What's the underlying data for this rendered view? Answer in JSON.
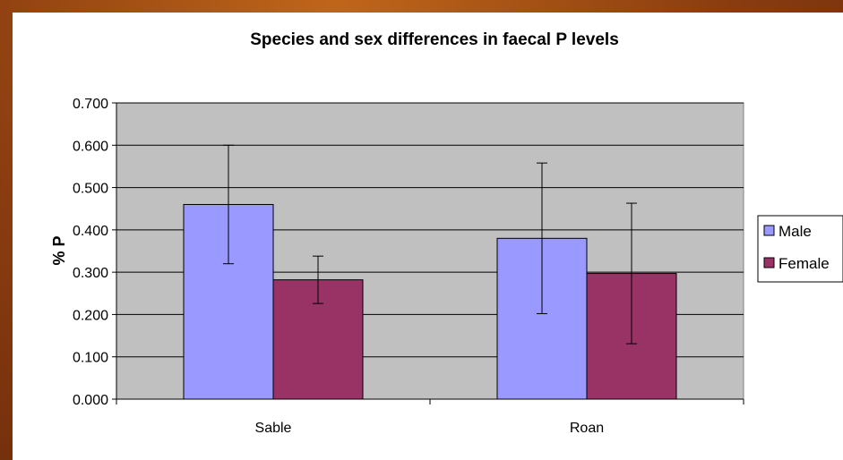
{
  "chart_data": {
    "type": "bar",
    "title": "Species and sex differences in faecal P levels",
    "xlabel": "",
    "ylabel": "% P",
    "categories": [
      "Sable",
      "Roan"
    ],
    "ylim": [
      0,
      0.7
    ],
    "yticks": [
      "0.000",
      "0.100",
      "0.200",
      "0.300",
      "0.400",
      "0.500",
      "0.600",
      "0.700"
    ],
    "grid": true,
    "legend_position": "right",
    "series": [
      {
        "name": "Male",
        "color": "#9999ff",
        "values": [
          0.46,
          0.38
        ],
        "error_low": [
          0.32,
          0.202
        ],
        "error_high": [
          0.6,
          0.558
        ]
      },
      {
        "name": "Female",
        "color": "#993366",
        "values": [
          0.282,
          0.297
        ],
        "error_low": [
          0.226,
          0.131
        ],
        "error_high": [
          0.338,
          0.463
        ]
      }
    ],
    "plot_background": "#c0c0c0"
  }
}
